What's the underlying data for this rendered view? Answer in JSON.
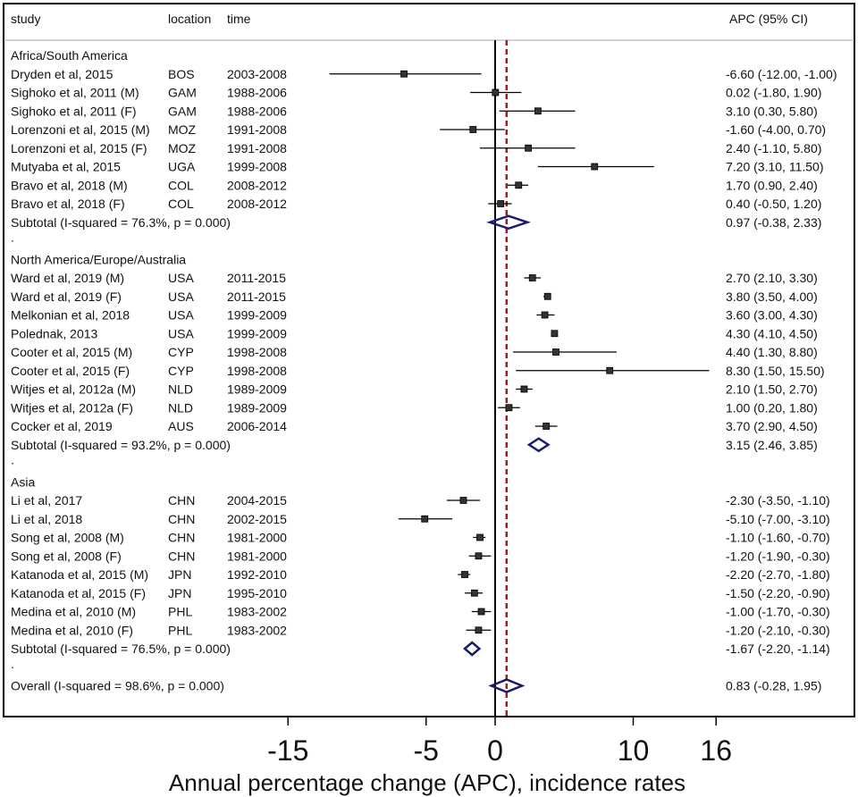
{
  "chart_data": {
    "type": "forest",
    "headers": {
      "study": "study",
      "location": "location",
      "time": "time",
      "ci": "APC (95% CI)"
    },
    "xlabel": "Annual percentage change (APC), incidence rates",
    "xticks": [
      -15,
      -5,
      0,
      10,
      16
    ],
    "xlim": [
      -15,
      16
    ],
    "reference_line": 0.83,
    "groups": [
      {
        "name": "Africa/South America",
        "studies": [
          {
            "study": "Dryden et al, 2015",
            "location": "BOS",
            "time": "2003-2008",
            "apc": -6.6,
            "lo": -12.0,
            "hi": -1.0,
            "ci_text": "-6.60 (-12.00, -1.00)"
          },
          {
            "study": "Sighoko et al, 2011 (M)",
            "location": "GAM",
            "time": "1988-2006",
            "apc": 0.02,
            "lo": -1.8,
            "hi": 1.9,
            "ci_text": "0.02 (-1.80, 1.90)"
          },
          {
            "study": "Sighoko et al, 2011 (F)",
            "location": "GAM",
            "time": "1988-2006",
            "apc": 3.1,
            "lo": 0.3,
            "hi": 5.8,
            "ci_text": "3.10 (0.30, 5.80)"
          },
          {
            "study": "Lorenzoni et al, 2015 (M)",
            "location": "MOZ",
            "time": "1991-2008",
            "apc": -1.6,
            "lo": -4.0,
            "hi": 0.7,
            "ci_text": "-1.60 (-4.00, 0.70)"
          },
          {
            "study": "Lorenzoni et al, 2015 (F)",
            "location": "MOZ",
            "time": "1991-2008",
            "apc": 2.4,
            "lo": -1.1,
            "hi": 5.8,
            "ci_text": "2.40 (-1.10, 5.80)"
          },
          {
            "study": "Mutyaba et al, 2015",
            "location": "UGA",
            "time": "1999-2008",
            "apc": 7.2,
            "lo": 3.1,
            "hi": 11.5,
            "ci_text": "7.20 (3.10, 11.50)"
          },
          {
            "study": "Bravo et al, 2018 (M)",
            "location": "COL",
            "time": "2008-2012",
            "apc": 1.7,
            "lo": 0.9,
            "hi": 2.4,
            "ci_text": "1.70 (0.90, 2.40)"
          },
          {
            "study": "Bravo et al, 2018 (F)",
            "location": "COL",
            "time": "2008-2012",
            "apc": 0.4,
            "lo": -0.5,
            "hi": 1.2,
            "ci_text": "0.40 (-0.50, 1.20)"
          }
        ],
        "subtotal": {
          "label": "Subtotal  (I-squared = 76.3%, p = 0.000)",
          "apc": 0.97,
          "lo": -0.38,
          "hi": 2.33,
          "ci_text": "0.97 (-0.38, 2.33)"
        }
      },
      {
        "name": "North America/Europe/Australia",
        "studies": [
          {
            "study": "Ward et al, 2019 (M)",
            "location": "USA",
            "time": "2011-2015",
            "apc": 2.7,
            "lo": 2.1,
            "hi": 3.3,
            "ci_text": "2.70 (2.10, 3.30)"
          },
          {
            "study": "Ward et al, 2019 (F)",
            "location": "USA",
            "time": "2011-2015",
            "apc": 3.8,
            "lo": 3.5,
            "hi": 4.0,
            "ci_text": "3.80 (3.50, 4.00)"
          },
          {
            "study": "Melkonian et al, 2018",
            "location": "USA",
            "time": "1999-2009",
            "apc": 3.6,
            "lo": 3.0,
            "hi": 4.3,
            "ci_text": "3.60 (3.00, 4.30)"
          },
          {
            "study": "Polednak, 2013",
            "location": "USA",
            "time": "1999-2009",
            "apc": 4.3,
            "lo": 4.1,
            "hi": 4.5,
            "ci_text": "4.30 (4.10, 4.50)"
          },
          {
            "study": "Cooter et al, 2015 (M)",
            "location": "CYP",
            "time": "1998-2008",
            "apc": 4.4,
            "lo": 1.3,
            "hi": 8.8,
            "ci_text": "4.40 (1.30, 8.80)"
          },
          {
            "study": "Cooter et al, 2015 (F)",
            "location": "CYP",
            "time": "1998-2008",
            "apc": 8.3,
            "lo": 1.5,
            "hi": 15.5,
            "ci_text": "8.30 (1.50, 15.50)"
          },
          {
            "study": "Witjes et al, 2012a (M)",
            "location": "NLD",
            "time": "1989-2009",
            "apc": 2.1,
            "lo": 1.5,
            "hi": 2.7,
            "ci_text": "2.10 (1.50, 2.70)"
          },
          {
            "study": "Witjes et al, 2012a (F)",
            "location": "NLD",
            "time": "1989-2009",
            "apc": 1.0,
            "lo": 0.2,
            "hi": 1.8,
            "ci_text": "1.00 (0.20, 1.80)"
          },
          {
            "study": "Cocker et al, 2019",
            "location": "AUS",
            "time": "2006-2014",
            "apc": 3.7,
            "lo": 2.9,
            "hi": 4.5,
            "ci_text": "3.70 (2.90, 4.50)"
          }
        ],
        "subtotal": {
          "label": "Subtotal  (I-squared = 93.2%, p = 0.000)",
          "apc": 3.15,
          "lo": 2.46,
          "hi": 3.85,
          "ci_text": "3.15 (2.46, 3.85)"
        }
      },
      {
        "name": "Asia",
        "studies": [
          {
            "study": "Li et al, 2017",
            "location": "CHN",
            "time": "2004-2015",
            "apc": -2.3,
            "lo": -3.5,
            "hi": -1.1,
            "ci_text": "-2.30 (-3.50, -1.10)"
          },
          {
            "study": "Li et al, 2018",
            "location": "CHN",
            "time": "2002-2015",
            "apc": -5.1,
            "lo": -7.0,
            "hi": -3.1,
            "ci_text": "-5.10 (-7.00, -3.10)"
          },
          {
            "study": "Song et al, 2008 (M)",
            "location": "CHN",
            "time": "1981-2000",
            "apc": -1.1,
            "lo": -1.6,
            "hi": -0.7,
            "ci_text": "-1.10 (-1.60, -0.70)"
          },
          {
            "study": "Song et al, 2008 (F)",
            "location": "CHN",
            "time": "1981-2000",
            "apc": -1.2,
            "lo": -1.9,
            "hi": -0.3,
            "ci_text": "-1.20 (-1.90, -0.30)"
          },
          {
            "study": "Katanoda et al, 2015 (M)",
            "location": "JPN",
            "time": "1992-2010",
            "apc": -2.2,
            "lo": -2.7,
            "hi": -1.8,
            "ci_text": "-2.20 (-2.70, -1.80)"
          },
          {
            "study": "Katanoda et al, 2015 (F)",
            "location": "JPN",
            "time": "1995-2010",
            "apc": -1.5,
            "lo": -2.2,
            "hi": -0.9,
            "ci_text": "-1.50 (-2.20, -0.90)"
          },
          {
            "study": "Medina et al, 2010 (M)",
            "location": "PHL",
            "time": "1983-2002",
            "apc": -1.0,
            "lo": -1.7,
            "hi": -0.3,
            "ci_text": "-1.00 (-1.70, -0.30)"
          },
          {
            "study": "Medina et al, 2010 (F)",
            "location": "PHL",
            "time": "1983-2002",
            "apc": -1.2,
            "lo": -2.1,
            "hi": -0.3,
            "ci_text": "-1.20 (-2.10, -0.30)"
          }
        ],
        "subtotal": {
          "label": "Subtotal  (I-squared = 76.5%, p = 0.000)",
          "apc": -1.67,
          "lo": -2.2,
          "hi": -1.14,
          "ci_text": "-1.67 (-2.20, -1.14)"
        }
      }
    ],
    "overall": {
      "label": "Overall  (I-squared = 98.6%, p = 0.000)",
      "apc": 0.83,
      "lo": -0.28,
      "hi": 1.95,
      "ci_text": "0.83 (-0.28, 1.95)"
    },
    "spacer": ".",
    "colors": {
      "diamond": "#1a1a6e",
      "reference": "#a01c1c",
      "marker": "#333333"
    }
  }
}
